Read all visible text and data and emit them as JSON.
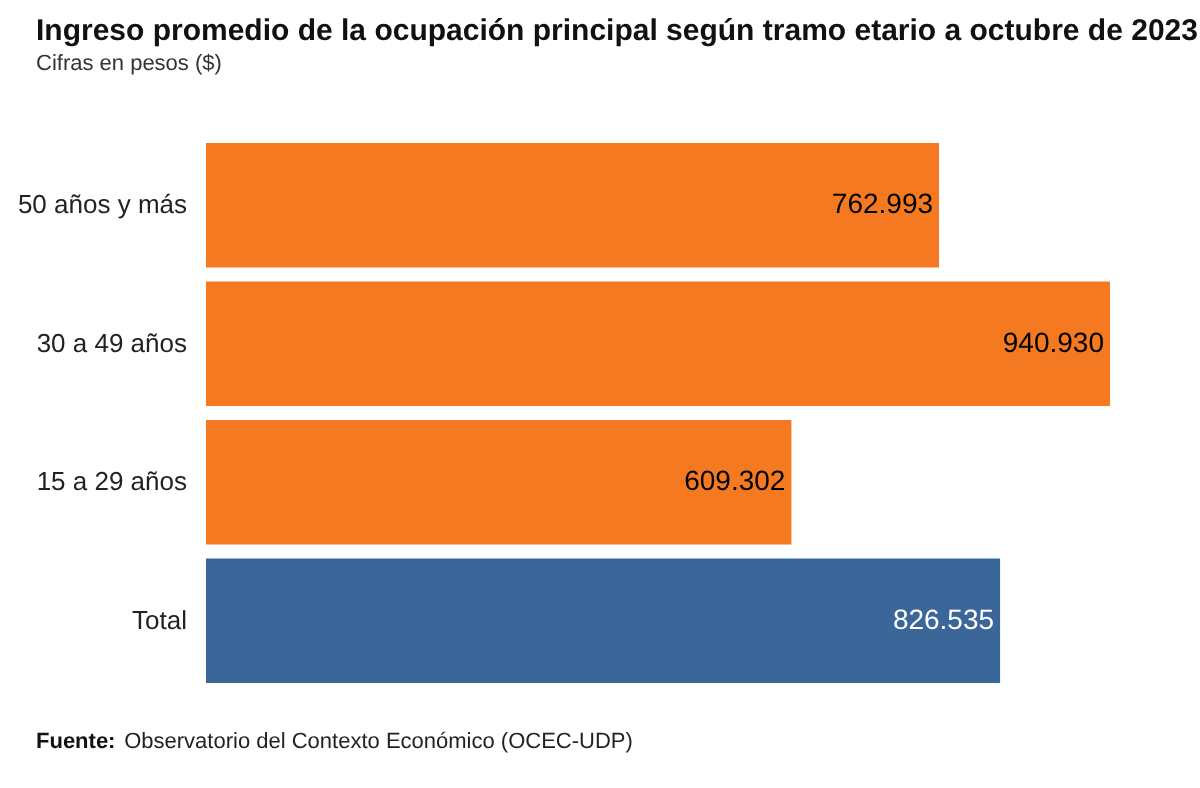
{
  "chart_data": {
    "type": "bar",
    "orientation": "horizontal",
    "title": "Ingreso promedio de la ocupación principal según tramo etario a octubre de 2023",
    "subtitle": "Cifras en pesos ($)",
    "categories": [
      "50 años y más",
      "30 a 49 años",
      "15 a 29 años",
      "Total"
    ],
    "values": [
      762993,
      940930,
      609302,
      826535
    ],
    "colors": [
      "#f47920",
      "#f47920",
      "#f47920",
      "#3a6699"
    ],
    "value_labels": [
      "762.993",
      "940.930",
      "609.302",
      "826.535"
    ],
    "annotations": [
      "Fuente: Observatorio del Contexto Económico (OCEC-UDP)"
    ],
    "grid": false
  }
}
